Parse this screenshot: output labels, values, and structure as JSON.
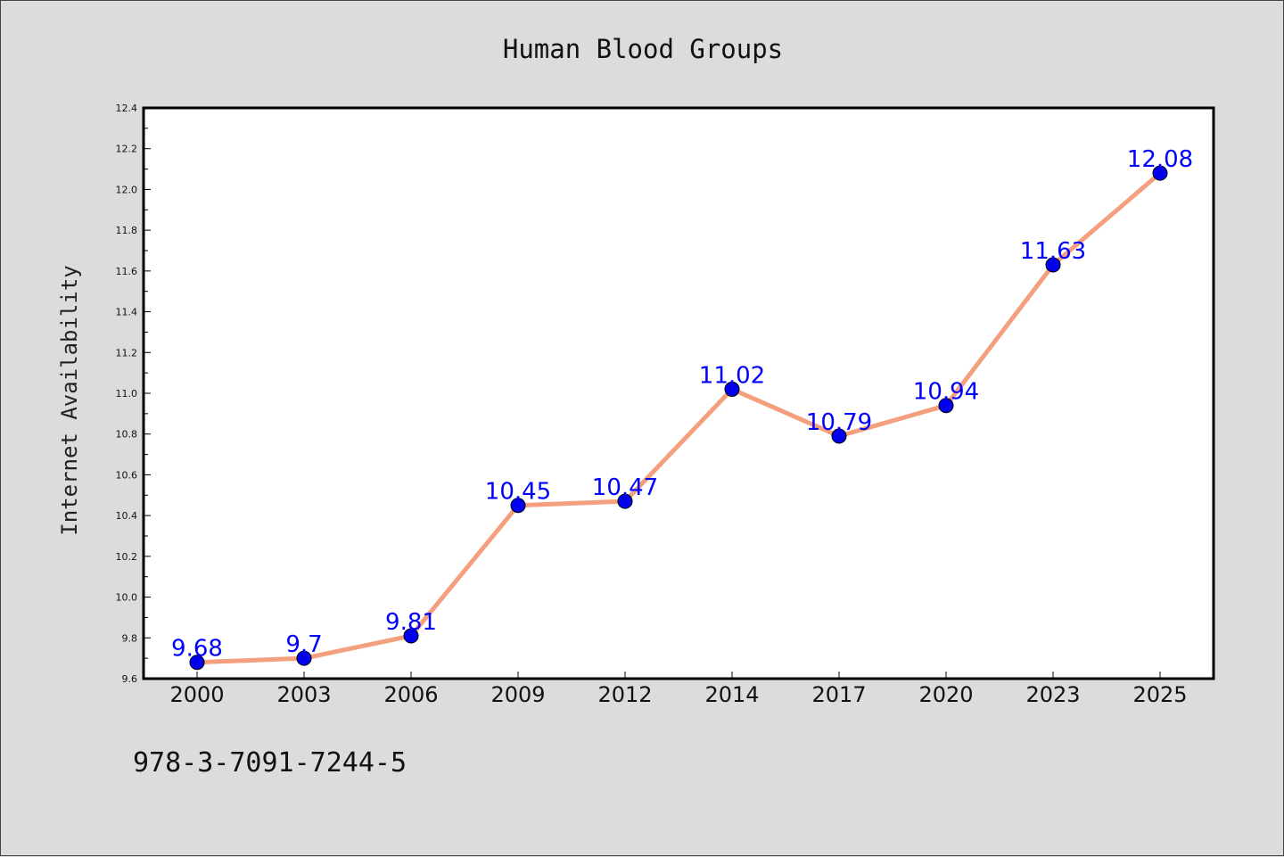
{
  "chart_data": {
    "type": "line",
    "title": "Human Blood Groups",
    "xlabel": "",
    "ylabel": "Internet Availability",
    "categories": [
      "2000",
      "2003",
      "2006",
      "2009",
      "2012",
      "2014",
      "2017",
      "2020",
      "2023",
      "2025"
    ],
    "values": [
      9.68,
      9.7,
      9.81,
      10.45,
      10.47,
      11.02,
      10.79,
      10.94,
      11.63,
      12.08
    ],
    "data_labels": [
      "9.68",
      "9.7",
      "9.81",
      "10.45",
      "10.47",
      "11.02",
      "10.79",
      "10.94",
      "11.63",
      "12.08"
    ],
    "ylim": [
      9.6,
      12.4
    ],
    "yticks": [
      "9.6",
      "9.8",
      "10.0",
      "10.2",
      "10.4",
      "10.6",
      "10.8",
      "11.0",
      "11.2",
      "11.4",
      "11.6",
      "11.8",
      "12.0",
      "12.2",
      "12.4"
    ],
    "grid": false,
    "legend": "none",
    "colors": {
      "line": "#f4a07e",
      "marker": "#0000ee",
      "label": "#0000ff"
    }
  },
  "footer": {
    "isbn": "978-3-7091-7244-5"
  }
}
